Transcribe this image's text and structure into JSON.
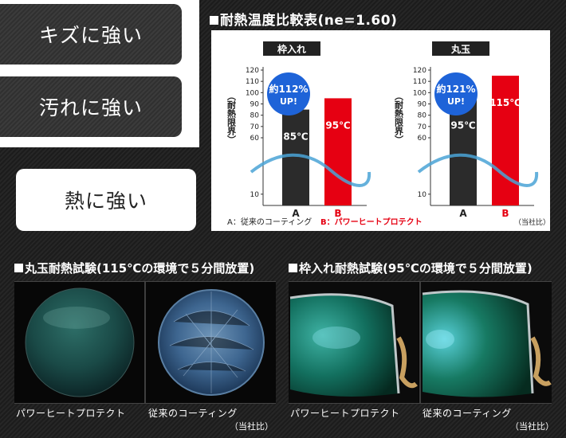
{
  "tabs": [
    {
      "label": "キズに強い"
    },
    {
      "label": "汚れに強い"
    },
    {
      "label": "熱に強い"
    }
  ],
  "chart_section": {
    "heading": "耐熱温度比較表(ne=1.60)",
    "ylabel": "耐熱限界",
    "legend_a": "A：従来のコーティング",
    "legend_b": "B：パワーヒートプロテクト",
    "note": "（当社比）"
  },
  "chart_data": [
    {
      "type": "bar",
      "title": "枠入れ",
      "categories": [
        "A",
        "B"
      ],
      "values": [
        85,
        95
      ],
      "value_labels": [
        "85℃",
        "95℃"
      ],
      "ylim": [
        0,
        120
      ],
      "yticks": [
        10,
        60,
        70,
        80,
        90,
        100,
        110,
        120
      ],
      "colors": [
        "#2b2b2b",
        "#e60012"
      ],
      "badge": {
        "line1": "約112%",
        "line2": "UP!"
      }
    },
    {
      "type": "bar",
      "title": "丸玉",
      "categories": [
        "A",
        "B"
      ],
      "values": [
        95,
        115
      ],
      "value_labels": [
        "95℃",
        "115℃"
      ],
      "ylim": [
        0,
        120
      ],
      "yticks": [
        10,
        60,
        70,
        80,
        90,
        100,
        110,
        120
      ],
      "colors": [
        "#2b2b2b",
        "#e60012"
      ],
      "badge": {
        "line1": "約121%",
        "line2": "UP!"
      }
    }
  ],
  "tests": {
    "left": {
      "heading": "丸玉耐熱試験(115℃の環境で５分間放置)",
      "caption_1": "パワーヒートプロテクト",
      "caption_2": "従来のコーティング",
      "note": "（当社比）"
    },
    "right": {
      "heading": "枠入れ耐熱試験(95℃の環境で５分間放置)",
      "caption_1": "パワーヒートプロテクト",
      "caption_2": "従来のコーティング",
      "note": "（当社比）"
    }
  },
  "colors": {
    "accent_red": "#e60012",
    "badge_blue": "#1e63d8",
    "bar_dark": "#2b2b2b",
    "wave_blue": "#4aa3d6"
  }
}
